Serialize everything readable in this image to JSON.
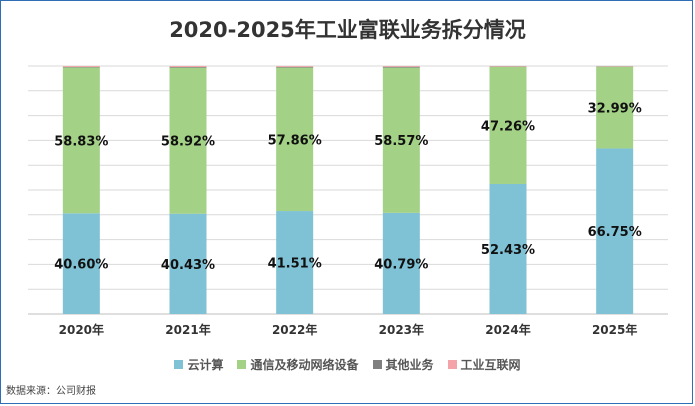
{
  "chart_data": {
    "type": "bar",
    "stacked": true,
    "title": "2020-2025年工业富联业务拆分情况",
    "categories": [
      "2020年",
      "2021年",
      "2022年",
      "2023年",
      "2024年",
      "2025年"
    ],
    "series": [
      {
        "name": "云计算",
        "color": "#7fc2d6",
        "values": [
          40.6,
          40.43,
          41.51,
          40.79,
          52.43,
          66.75
        ],
        "labels": [
          "40.60%",
          "40.43%",
          "41.51%",
          "40.79%",
          "52.43%",
          "66.75%"
        ]
      },
      {
        "name": "通信及移动网络设备",
        "color": "#a3d186",
        "values": [
          58.83,
          58.92,
          57.86,
          58.57,
          47.26,
          32.99
        ],
        "labels": [
          "58.83%",
          "58.92%",
          "57.86%",
          "58.57%",
          "47.26%",
          "32.99%"
        ]
      },
      {
        "name": "其他业务",
        "color": "#7f7f7f",
        "values": [
          0.2,
          0.25,
          0.3,
          0.35,
          0.1,
          0.1
        ]
      },
      {
        "name": "工业互联网",
        "color": "#f4a3a8",
        "values": [
          0.37,
          0.4,
          0.33,
          0.29,
          0.21,
          0.16
        ]
      }
    ],
    "ylim": [
      0,
      100
    ],
    "grid": true,
    "legend_position": "bottom"
  },
  "source": "数据来源：公司财报"
}
